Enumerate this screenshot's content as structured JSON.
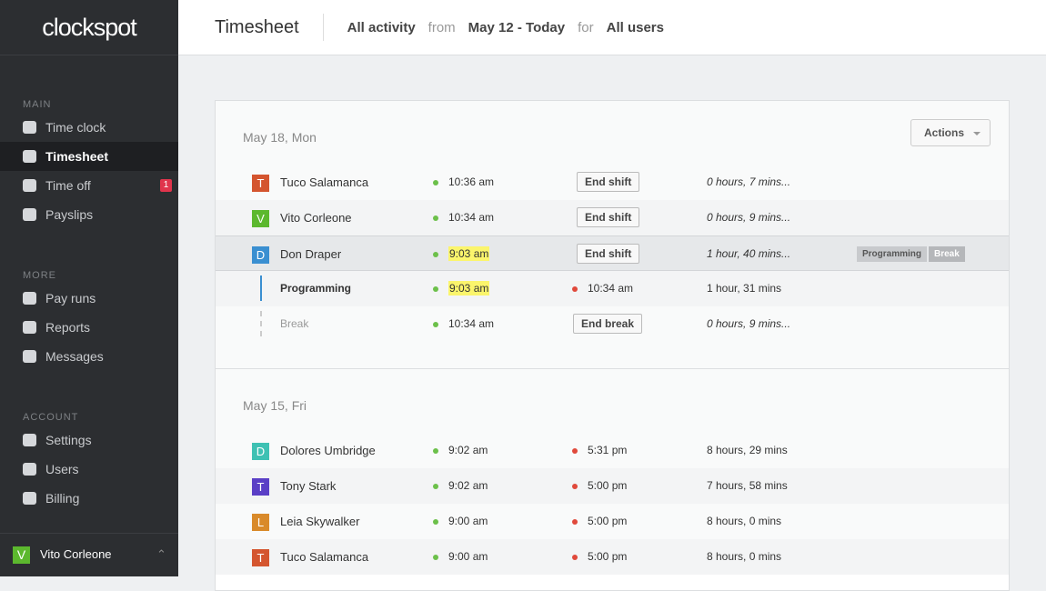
{
  "sidebar": {
    "logo": "clockspot",
    "sections": [
      {
        "title": "MAIN",
        "items": [
          {
            "label": "Time clock"
          },
          {
            "label": "Timesheet",
            "active": true
          },
          {
            "label": "Time off",
            "badge": "1"
          },
          {
            "label": "Payslips"
          }
        ]
      },
      {
        "title": "MORE",
        "items": [
          {
            "label": "Pay runs"
          },
          {
            "label": "Reports"
          },
          {
            "label": "Messages"
          }
        ]
      },
      {
        "title": "ACCOUNT",
        "items": [
          {
            "label": "Settings"
          },
          {
            "label": "Users"
          },
          {
            "label": "Billing"
          }
        ]
      }
    ],
    "user": {
      "initial": "V",
      "name": "Vito Corleone",
      "color": "#5cb82e"
    }
  },
  "header": {
    "title": "Timesheet",
    "filter": "All activity",
    "from": "from",
    "range": "May 12 - Today",
    "for": "for",
    "users": "All users"
  },
  "actions": "Actions",
  "days": [
    {
      "date": "May 18, Mon",
      "rows": [
        {
          "initial": "T",
          "color": "#d4552f",
          "name": "Tuco Salamanca",
          "start": "10:36 am",
          "button": "End shift",
          "duration": "0 hours, 7 mins..."
        },
        {
          "initial": "V",
          "color": "#5cb82e",
          "name": "Vito Corleone",
          "start": "10:34 am",
          "button": "End shift",
          "duration": "0 hours, 9 mins..."
        },
        {
          "initial": "D",
          "color": "#3a8fd1",
          "name": "Don Draper",
          "start": "9:03 am",
          "highlight": true,
          "selected": true,
          "button": "End shift",
          "duration": "1 hour, 40 mins...",
          "tags": [
            "Programming",
            "Break"
          ],
          "entries": [
            {
              "name": "Programming",
              "line": "solid",
              "start": "9:03 am",
              "highlight": true,
              "end": "10:34 am",
              "duration": "1 hour, 31 mins"
            },
            {
              "name": "Break",
              "line": "dashed",
              "start": "10:34 am",
              "button": "End break",
              "duration": "0 hours, 9 mins..."
            }
          ]
        }
      ]
    },
    {
      "date": "May 15, Fri",
      "rows": [
        {
          "initial": "D",
          "color": "#3ec1b3",
          "name": "Dolores Umbridge",
          "start": "9:02 am",
          "end": "5:31 pm",
          "duration": "8 hours, 29 mins"
        },
        {
          "initial": "T",
          "color": "#5a3fc6",
          "name": "Tony Stark",
          "start": "9:02 am",
          "end": "5:00 pm",
          "duration": "7 hours, 58 mins"
        },
        {
          "initial": "L",
          "color": "#d98a2a",
          "name": "Leia Skywalker",
          "start": "9:00 am",
          "end": "5:00 pm",
          "duration": "8 hours, 0 mins"
        },
        {
          "initial": "T",
          "color": "#d4552f",
          "name": "Tuco Salamanca",
          "start": "9:00 am",
          "end": "5:00 pm",
          "duration": "8 hours, 0 mins"
        }
      ]
    }
  ]
}
